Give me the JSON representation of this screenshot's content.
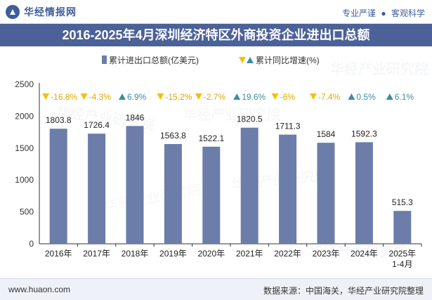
{
  "header": {
    "brand_name": "华经情报网",
    "tagline_part1": "专业严谨",
    "tagline_sep": "●",
    "tagline_part2": "客观科学"
  },
  "title": "2016-2025年4月深圳经济特区外商投资企业进出口总额",
  "watermark_text": "华经产业研究院",
  "colors": {
    "bar": "#6b7da8",
    "down_marker": "#f5c000",
    "up_marker": "#3e8da2",
    "title_bg": "#4b6198"
  },
  "chart_data": {
    "type": "bar",
    "categories": [
      "2016年",
      "2017年",
      "2018年",
      "2019年",
      "2020年",
      "2021年",
      "2022年",
      "2023年",
      "2024年",
      "2025年\n1-4月"
    ],
    "series": [
      {
        "name": "累计进出口总额(亿美元)",
        "values": [
          1803.8,
          1726.4,
          1846,
          1563.8,
          1522.1,
          1820.5,
          1711.3,
          1584,
          1592.3,
          515.3
        ]
      }
    ],
    "value_labels": [
      "1803.8",
      "1726.4",
      "1846",
      "1563.8",
      "1522.1",
      "1820.5",
      "1711.3",
      "1584",
      "1592.3",
      "515.3"
    ],
    "growth": {
      "name": "累计同比增速(%)",
      "values": [
        -16.8,
        -4.3,
        6.9,
        -15.2,
        -2.7,
        19.6,
        -6,
        -7.4,
        0.5,
        6.1
      ],
      "labels": [
        "-16.8%",
        "-4.3%",
        "6.9%",
        "-15.2%",
        "-2.7%",
        "19.6%",
        "-6%",
        "-7.4%",
        "0.5%",
        "6.1%"
      ]
    },
    "yticks": [
      "0",
      "500",
      "1000",
      "1500",
      "2000",
      "2500"
    ],
    "ylim": [
      0,
      2500
    ],
    "grid": false,
    "legend_position": "top-center"
  },
  "footer": {
    "website": "www.huaon.com",
    "source": "数据来源：中国海关，华经产业研究院整理"
  }
}
